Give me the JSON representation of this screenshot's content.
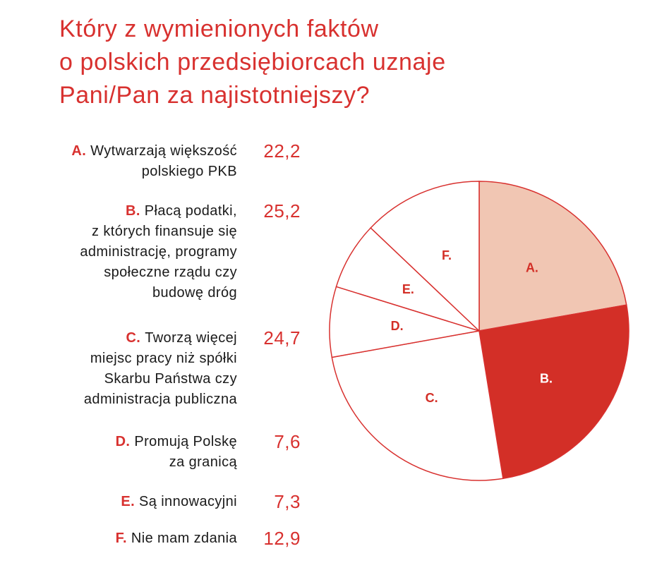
{
  "title": {
    "lines": [
      "Który z wymienionych faktów",
      "o polskich przedsiębiorcach uznaje",
      "Pani/Pan za najistotniejszy?"
    ]
  },
  "chart_data": {
    "type": "pie",
    "categories": [
      "A.",
      "B.",
      "C.",
      "D.",
      "E.",
      "F."
    ],
    "values": [
      22.2,
      25.2,
      24.7,
      7.6,
      7.3,
      12.9
    ],
    "value_labels": [
      "22,2",
      "25,2",
      "24,7",
      "7,6",
      "7,3",
      "12,9"
    ],
    "legend": [
      {
        "letter": "A.",
        "lines": [
          "Wytwarzają większość",
          "polskiego PKB"
        ]
      },
      {
        "letter": "B.",
        "lines": [
          "Płacą podatki,",
          "z których finansuje się",
          "administrację, programy",
          "społeczne rządu czy",
          "budowę dróg"
        ]
      },
      {
        "letter": "C.",
        "lines": [
          "Tworzą więcej",
          "miejsc pracy niż spółki",
          "Skarbu Państwa czy",
          "administracja publiczna"
        ]
      },
      {
        "letter": "D.",
        "lines": [
          "Promują Polskę",
          "za granicą"
        ]
      },
      {
        "letter": "E.",
        "lines": [
          "Są innowacyjni"
        ]
      },
      {
        "letter": "F.",
        "lines": [
          "Nie mam zdania"
        ]
      }
    ],
    "colors": [
      "#f1c6b3",
      "#d32f27",
      "#ffffff",
      "#ffffff",
      "#ffffff",
      "#ffffff"
    ],
    "label_colors": [
      "#d32f27",
      "#ffffff",
      "#d32f27",
      "#d32f27",
      "#d32f27",
      "#d32f27"
    ],
    "edge_color": "#d8312f",
    "legend_placement": "left"
  }
}
